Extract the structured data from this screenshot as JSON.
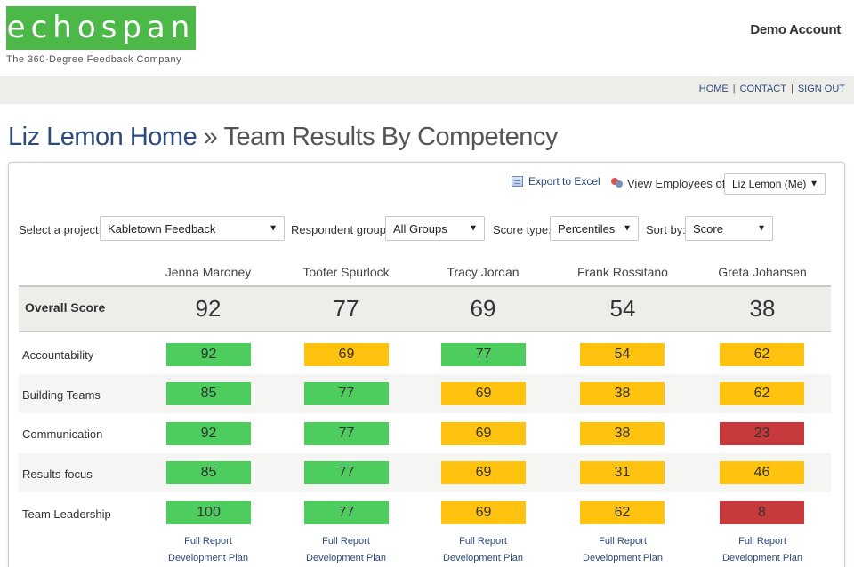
{
  "header": {
    "logo_text": "echospan",
    "tagline": "The 360-Degree Feedback Company",
    "account": "Demo Account"
  },
  "nav": {
    "home": "HOME",
    "contact": "CONTACT",
    "signout": "SIGN OUT",
    "separator": "|"
  },
  "title": {
    "home_link": "Liz Lemon Home",
    "separator": "»",
    "current": "Team Results By Competency"
  },
  "toolbar": {
    "export_label": "Export to Excel",
    "view_employees_label": "View Employees of",
    "view_employees_value": "Liz Lemon (Me)"
  },
  "filters": {
    "project_label": "Select a project:",
    "project_value": "Kabletown Feedback",
    "respondent_label": "Respondent group:",
    "respondent_value": "All Groups",
    "score_type_label": "Score type:",
    "score_type_value": "Percentiles",
    "sort_label": "Sort by:",
    "sort_value": "Score"
  },
  "table": {
    "employees": [
      "Jenna Maroney",
      "Toofer Spurlock",
      "Tracy Jordan",
      "Frank Rossitano",
      "Greta Johansen"
    ],
    "overall_label": "Overall Score",
    "overall_scores": [
      "92",
      "77",
      "69",
      "54",
      "38"
    ],
    "rows": [
      {
        "label": "Accountability",
        "values": [
          "92",
          "69",
          "77",
          "54",
          "62"
        ],
        "colors": [
          "green",
          "yellow",
          "green",
          "yellow",
          "yellow"
        ]
      },
      {
        "label": "Building Teams",
        "values": [
          "85",
          "77",
          "69",
          "38",
          "62"
        ],
        "colors": [
          "green",
          "green",
          "yellow",
          "yellow",
          "yellow"
        ]
      },
      {
        "label": "Communication",
        "values": [
          "92",
          "77",
          "69",
          "38",
          "23"
        ],
        "colors": [
          "green",
          "green",
          "yellow",
          "yellow",
          "red"
        ]
      },
      {
        "label": "Results-focus",
        "values": [
          "85",
          "77",
          "69",
          "31",
          "46"
        ],
        "colors": [
          "green",
          "green",
          "yellow",
          "yellow",
          "yellow"
        ]
      },
      {
        "label": "Team Leadership",
        "values": [
          "100",
          "77",
          "69",
          "62",
          "8"
        ],
        "colors": [
          "green",
          "green",
          "yellow",
          "yellow",
          "red"
        ]
      }
    ],
    "full_report_label": "Full Report",
    "dev_plan_label": "Development Plan"
  },
  "colors": {
    "green": "#4ccd5d",
    "yellow": "#ffc20e",
    "red": "#c8393c",
    "brand": "#4cb848",
    "link": "#2c4a7d"
  }
}
